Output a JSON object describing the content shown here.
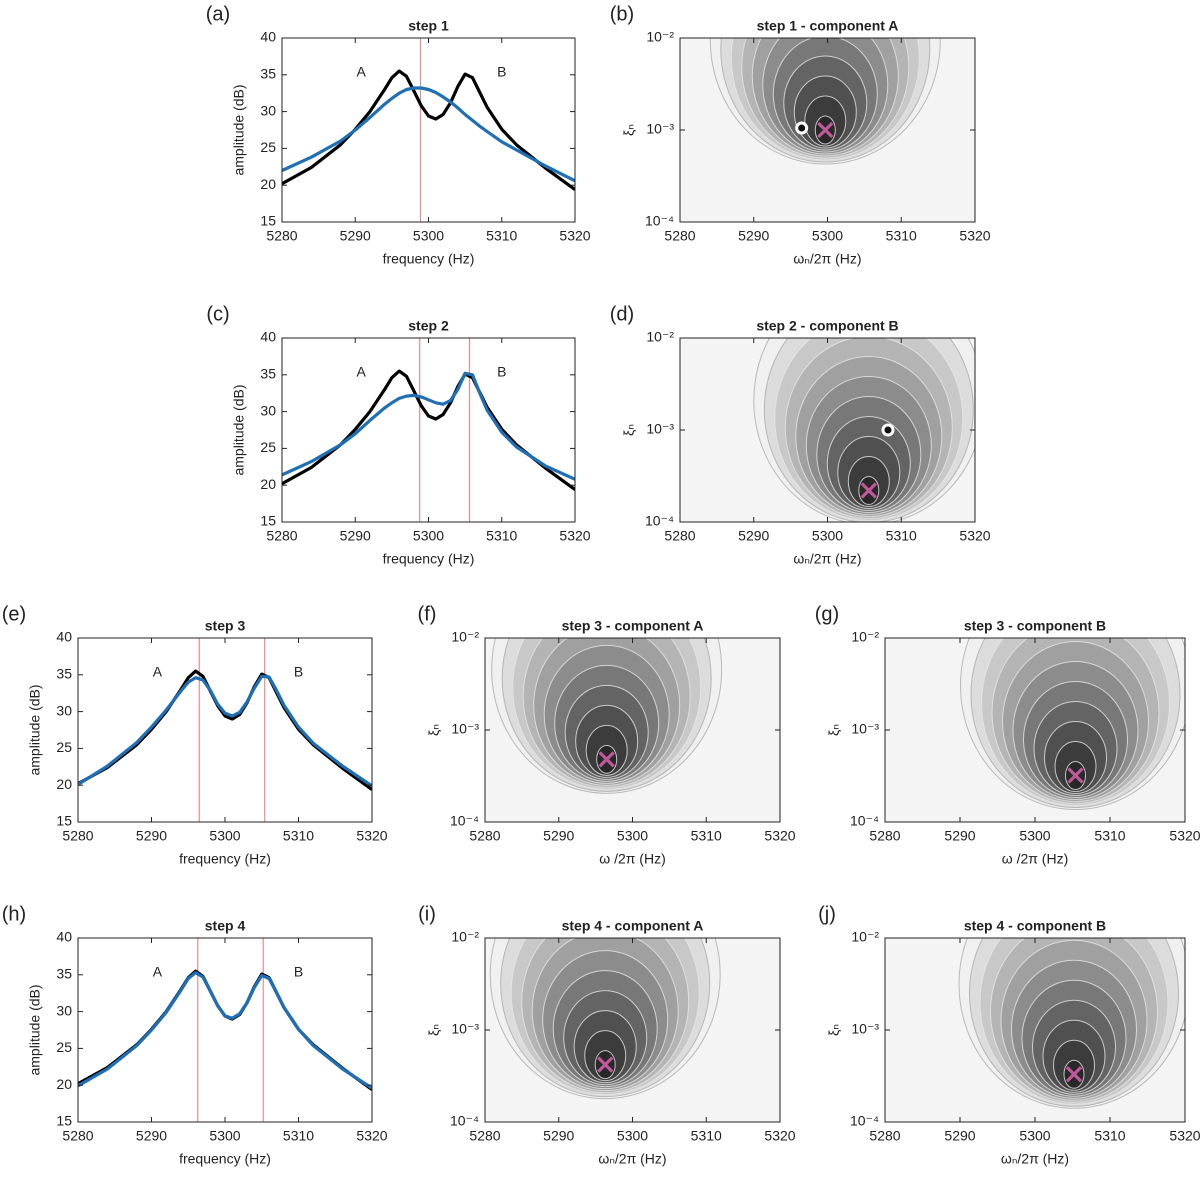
{
  "chart_data": [
    {
      "type": "line",
      "panel_label": "(a)",
      "title": "step 1",
      "xlabel": "frequency (Hz)",
      "ylabel": "amplitude (dB)",
      "x": [
        5280,
        5284,
        5288,
        5290,
        5292,
        5294,
        5295,
        5296,
        5297,
        5298,
        5299,
        5300,
        5301,
        5302,
        5303,
        5304,
        5305,
        5306,
        5307,
        5308,
        5310,
        5312,
        5316,
        5320
      ],
      "series": [
        {
          "color": "#000000",
          "values": [
            20.2,
            22.4,
            25.5,
            27.6,
            30.0,
            33.0,
            34.6,
            35.5,
            34.8,
            32.8,
            30.8,
            29.4,
            29.0,
            29.6,
            31.2,
            33.4,
            35.1,
            34.6,
            32.6,
            30.6,
            27.6,
            25.5,
            22.3,
            19.4
          ]
        },
        {
          "color": "#1f6fb5",
          "values": [
            22.0,
            23.8,
            26.0,
            27.5,
            29.2,
            31.0,
            31.8,
            32.5,
            33.0,
            33.2,
            33.2,
            33.0,
            32.6,
            32.0,
            31.3,
            30.5,
            29.6,
            28.8,
            28.0,
            27.3,
            25.9,
            24.8,
            22.6,
            20.6
          ]
        }
      ],
      "vlines": [
        5298.9
      ],
      "vline_color": "#f08a8a",
      "annotations": [
        "A",
        "B"
      ],
      "xlim": [
        5280,
        5320
      ],
      "xticks": [
        5280,
        5290,
        5300,
        5310,
        5320
      ],
      "ylim": [
        15,
        40
      ],
      "yticks": [
        15,
        20,
        25,
        30,
        35,
        40
      ]
    },
    {
      "type": "contour",
      "panel_label": "(b)",
      "title": "step 1 - component A",
      "xlabel": "ωₙ/2π (Hz)",
      "ylabel": "ξₙ",
      "points": [
        {
          "marker": "o",
          "x": 5296.5,
          "y": 0.00105
        },
        {
          "marker": "x",
          "x": 5299.7,
          "y": 0.001
        }
      ],
      "marker_colors": {
        "o": "#ffffff",
        "x": "#c0589c"
      },
      "xlim": [
        5280,
        5320
      ],
      "xticks": [
        5280,
        5290,
        5300,
        5310,
        5320
      ],
      "yscale": "log",
      "ylim": [
        0.0001,
        0.01
      ],
      "yticks": [
        {
          "value": 0.0001,
          "label": "10⁻⁴"
        },
        {
          "value": 0.001,
          "label": "10⁻³"
        },
        {
          "value": 0.01,
          "label": "10⁻²"
        }
      ]
    },
    {
      "type": "line",
      "panel_label": "(c)",
      "title": "step 2",
      "xlabel": "frequency (Hz)",
      "ylabel": "amplitude (dB)",
      "x": [
        5280,
        5284,
        5288,
        5290,
        5292,
        5294,
        5295,
        5296,
        5297,
        5298,
        5299,
        5300,
        5301,
        5302,
        5303,
        5304,
        5305,
        5306,
        5307,
        5308,
        5310,
        5312,
        5316,
        5320
      ],
      "series": [
        {
          "color": "#000000",
          "values": [
            20.2,
            22.4,
            25.5,
            27.6,
            30.0,
            33.0,
            34.6,
            35.5,
            34.8,
            32.8,
            30.8,
            29.4,
            29.0,
            29.6,
            31.2,
            33.4,
            35.1,
            34.6,
            32.6,
            30.6,
            27.6,
            25.5,
            22.3,
            19.4
          ]
        },
        {
          "color": "#1f6fb5",
          "values": [
            21.4,
            23.2,
            25.5,
            27.0,
            28.8,
            30.5,
            31.2,
            31.8,
            32.1,
            32.2,
            32.0,
            31.6,
            31.2,
            31.0,
            31.5,
            33.0,
            35.2,
            35.0,
            32.5,
            30.2,
            27.2,
            25.2,
            22.6,
            20.8
          ]
        }
      ],
      "vlines": [
        5298.8,
        5305.6
      ],
      "vline_color": "#f08a8a",
      "annotations": [
        "A",
        "B"
      ],
      "xlim": [
        5280,
        5320
      ],
      "xticks": [
        5280,
        5290,
        5300,
        5310,
        5320
      ],
      "ylim": [
        15,
        40
      ],
      "yticks": [
        15,
        20,
        25,
        30,
        35,
        40
      ]
    },
    {
      "type": "contour",
      "panel_label": "(d)",
      "title": "step 2 - component B",
      "xlabel": "ωₙ/2π (Hz)",
      "ylabel": "ξₙ",
      "points": [
        {
          "marker": "o",
          "x": 5308.2,
          "y": 0.001
        },
        {
          "marker": "x",
          "x": 5305.6,
          "y": 0.00022
        }
      ],
      "marker_colors": {
        "o": "#ffffff",
        "x": "#c0589c"
      },
      "xlim": [
        5280,
        5320
      ],
      "xticks": [
        5280,
        5290,
        5300,
        5310,
        5320
      ],
      "yscale": "log",
      "ylim": [
        0.0001,
        0.01
      ],
      "yticks": [
        {
          "value": 0.0001,
          "label": "10⁻⁴"
        },
        {
          "value": 0.001,
          "label": "10⁻³"
        },
        {
          "value": 0.01,
          "label": "10⁻²"
        }
      ]
    },
    {
      "type": "line",
      "panel_label": "(e)",
      "title": "step 3",
      "xlabel": "frequency (Hz)",
      "ylabel": "amplitude (dB)",
      "x": [
        5280,
        5284,
        5288,
        5290,
        5292,
        5294,
        5295,
        5296,
        5297,
        5298,
        5299,
        5300,
        5301,
        5302,
        5303,
        5304,
        5305,
        5306,
        5307,
        5308,
        5310,
        5312,
        5316,
        5320
      ],
      "series": [
        {
          "color": "#000000",
          "values": [
            20.2,
            22.4,
            25.5,
            27.6,
            30.0,
            33.0,
            34.6,
            35.5,
            34.8,
            32.8,
            30.8,
            29.4,
            29.0,
            29.6,
            31.2,
            33.4,
            35.1,
            34.6,
            32.6,
            30.6,
            27.6,
            25.5,
            22.3,
            19.4
          ]
        },
        {
          "color": "#1f6fb5",
          "values": [
            20.1,
            22.6,
            25.8,
            27.9,
            30.2,
            32.8,
            34.0,
            34.6,
            34.3,
            32.9,
            31.0,
            29.8,
            29.4,
            29.9,
            31.3,
            33.2,
            34.8,
            34.7,
            32.9,
            30.9,
            27.9,
            25.7,
            22.6,
            19.9
          ]
        }
      ],
      "vlines": [
        5296.5,
        5305.4
      ],
      "vline_color": "#f08a8a",
      "annotations": [
        "A",
        "B"
      ],
      "xlim": [
        5280,
        5320
      ],
      "xticks": [
        5280,
        5290,
        5300,
        5310,
        5320
      ],
      "ylim": [
        15,
        40
      ],
      "yticks": [
        15,
        20,
        25,
        30,
        35,
        40
      ]
    },
    {
      "type": "contour",
      "panel_label": "(f)",
      "title": "step 3 - component A",
      "xlabel": "ω  /2π (Hz)",
      "ylabel": "ξₙ",
      "points": [
        {
          "marker": "x",
          "x": 5296.5,
          "y": 0.00048
        }
      ],
      "marker_colors": {
        "o": "#ffffff",
        "x": "#c0589c"
      },
      "xlim": [
        5280,
        5320
      ],
      "xticks": [
        5280,
        5290,
        5300,
        5310,
        5320
      ],
      "yscale": "log",
      "ylim": [
        0.0001,
        0.01
      ],
      "yticks": [
        {
          "value": 0.0001,
          "label": "10⁻⁴"
        },
        {
          "value": 0.001,
          "label": "10⁻³"
        },
        {
          "value": 0.01,
          "label": "10⁻²"
        }
      ]
    },
    {
      "type": "contour",
      "panel_label": "(g)",
      "title": "step 3 - component B",
      "xlabel": "ω  /2π (Hz)",
      "ylabel": "ξₙ",
      "points": [
        {
          "marker": "x",
          "x": 5305.4,
          "y": 0.00032
        }
      ],
      "marker_colors": {
        "o": "#ffffff",
        "x": "#c0589c"
      },
      "xlim": [
        5280,
        5320
      ],
      "xticks": [
        5280,
        5290,
        5300,
        5310,
        5320
      ],
      "yscale": "log",
      "ylim": [
        0.0001,
        0.01
      ],
      "yticks": [
        {
          "value": 0.0001,
          "label": "10⁻⁴"
        },
        {
          "value": 0.001,
          "label": "10⁻³"
        },
        {
          "value": 0.01,
          "label": "10⁻²"
        }
      ]
    },
    {
      "type": "line",
      "panel_label": "(h)",
      "title": "step 4",
      "xlabel": "frequency (Hz)",
      "ylabel": "amplitude (dB)",
      "x": [
        5280,
        5284,
        5288,
        5290,
        5292,
        5294,
        5295,
        5296,
        5297,
        5298,
        5299,
        5300,
        5301,
        5302,
        5303,
        5304,
        5305,
        5306,
        5307,
        5308,
        5310,
        5312,
        5316,
        5320
      ],
      "series": [
        {
          "color": "#000000",
          "values": [
            20.2,
            22.4,
            25.5,
            27.6,
            30.0,
            33.0,
            34.6,
            35.5,
            34.8,
            32.8,
            30.8,
            29.4,
            29.0,
            29.6,
            31.2,
            33.4,
            35.1,
            34.6,
            32.6,
            30.6,
            27.6,
            25.5,
            22.3,
            19.4
          ]
        },
        {
          "color": "#1f6fb5",
          "values": [
            19.9,
            22.2,
            25.4,
            27.5,
            29.9,
            32.9,
            34.5,
            35.3,
            34.7,
            32.8,
            30.8,
            29.4,
            29.1,
            29.7,
            31.2,
            33.3,
            34.9,
            34.5,
            32.6,
            30.6,
            27.6,
            25.4,
            22.2,
            19.6
          ]
        }
      ],
      "vlines": [
        5296.3,
        5305.2
      ],
      "vline_color": "#f08a8a",
      "annotations": [
        "A",
        "B"
      ],
      "xlim": [
        5280,
        5320
      ],
      "xticks": [
        5280,
        5290,
        5300,
        5310,
        5320
      ],
      "ylim": [
        15,
        40
      ],
      "yticks": [
        15,
        20,
        25,
        30,
        35,
        40
      ]
    },
    {
      "type": "contour",
      "panel_label": "(i)",
      "title": "step 4 - component A",
      "xlabel": "ωₙ/2π (Hz)",
      "ylabel": "ξₙ",
      "points": [
        {
          "marker": "x",
          "x": 5296.3,
          "y": 0.00042
        }
      ],
      "marker_colors": {
        "o": "#ffffff",
        "x": "#c0589c"
      },
      "xlim": [
        5280,
        5320
      ],
      "xticks": [
        5280,
        5290,
        5300,
        5310,
        5320
      ],
      "yscale": "log",
      "ylim": [
        0.0001,
        0.01
      ],
      "yticks": [
        {
          "value": 0.0001,
          "label": "10⁻⁴"
        },
        {
          "value": 0.001,
          "label": "10⁻³"
        },
        {
          "value": 0.01,
          "label": "10⁻²"
        }
      ]
    },
    {
      "type": "contour",
      "panel_label": "(j)",
      "title": "step 4 - component B",
      "xlabel": "ωₙ/2π (Hz)",
      "ylabel": "ξₙ",
      "points": [
        {
          "marker": "x",
          "x": 5305.2,
          "y": 0.00033
        }
      ],
      "marker_colors": {
        "o": "#ffffff",
        "x": "#c0589c"
      },
      "xlim": [
        5280,
        5320
      ],
      "xticks": [
        5280,
        5290,
        5300,
        5310,
        5320
      ],
      "yscale": "log",
      "ylim": [
        0.0001,
        0.01
      ],
      "yticks": [
        {
          "value": 0.0001,
          "label": "10⁻⁴"
        },
        {
          "value": 0.001,
          "label": "10⁻³"
        },
        {
          "value": 0.01,
          "label": "10⁻²"
        }
      ]
    }
  ]
}
